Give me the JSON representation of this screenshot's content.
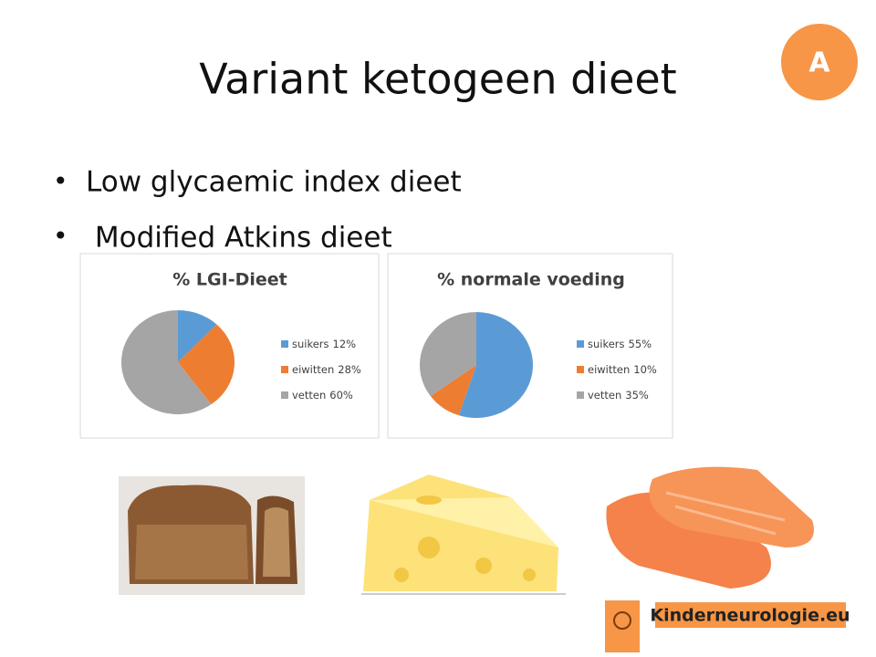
{
  "slide": {
    "title": "Variant ketogeen dieet",
    "badge": "A",
    "bullets": [
      "Low glycaemic index dieet",
      " Modified Atkins dieet"
    ],
    "logo": "Kinderneurologie.eu"
  },
  "chart_data": [
    {
      "type": "pie",
      "title": "% LGI-Dieet",
      "categories": [
        "suikers",
        "eiwitten",
        "vetten"
      ],
      "values": [
        12,
        28,
        60
      ],
      "value_labels": [
        "12%",
        "28%",
        "60%"
      ],
      "colors": [
        "#5b9bd5",
        "#ed7d31",
        "#a5a5a5"
      ]
    },
    {
      "type": "pie",
      "title": "% normale voeding",
      "categories": [
        "suikers",
        "eiwitten",
        "vetten"
      ],
      "values": [
        55,
        10,
        35
      ],
      "value_labels": [
        "55%",
        "10%",
        "35%"
      ],
      "colors": [
        "#5b9bd5",
        "#ed7d31",
        "#a5a5a5"
      ]
    }
  ]
}
